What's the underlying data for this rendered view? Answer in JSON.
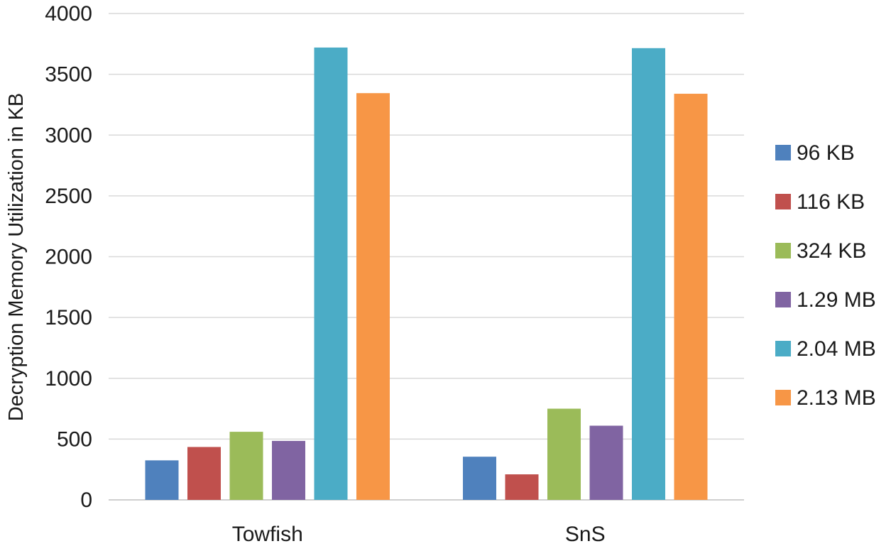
{
  "chart_data": {
    "type": "bar",
    "title": "",
    "xlabel": "",
    "ylabel": "Decryption Memory Utilization in KB",
    "ylim": [
      0,
      4000
    ],
    "yticks": [
      0,
      500,
      1000,
      1500,
      2000,
      2500,
      3000,
      3500,
      4000
    ],
    "grid": true,
    "legend_position": "right",
    "categories": [
      "Towfish",
      "SnS"
    ],
    "series": [
      {
        "name": "96 KB",
        "color": "#4f81bd",
        "values": [
          325,
          355
        ]
      },
      {
        "name": "116 KB",
        "color": "#c0504d",
        "values": [
          435,
          210
        ]
      },
      {
        "name": "324 KB",
        "color": "#9bbb59",
        "values": [
          560,
          750
        ]
      },
      {
        "name": "1.29 MB",
        "color": "#8064a2",
        "values": [
          485,
          610
        ]
      },
      {
        "name": "2.04 MB",
        "color": "#4bacc6",
        "values": [
          3720,
          3715
        ]
      },
      {
        "name": "2.13 MB",
        "color": "#f79646",
        "values": [
          3345,
          3340
        ]
      }
    ]
  }
}
